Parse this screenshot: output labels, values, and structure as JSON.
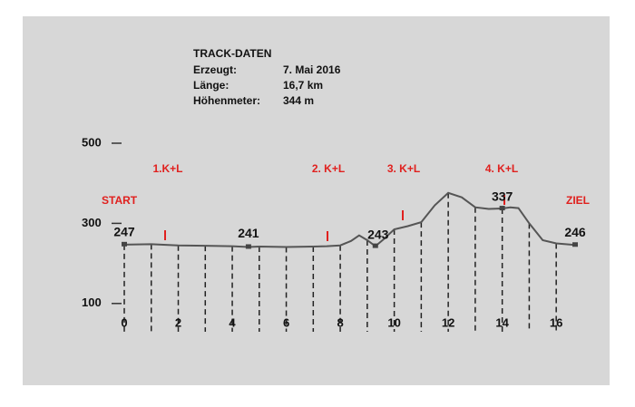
{
  "track_info": {
    "title": "TRACK-DATEN",
    "rows": [
      [
        "Erzeugt:",
        "7. Mai 2016"
      ],
      [
        "Länge:",
        "16,7 km"
      ],
      [
        "Höhenmeter:",
        "344 m"
      ]
    ]
  },
  "chart_data": {
    "type": "line",
    "color": "#555555",
    "x": [
      0,
      1,
      2,
      3,
      4,
      4.6,
      5,
      6,
      7,
      7.5,
      8,
      8.4,
      8.7,
      9,
      9.3,
      9.6,
      10,
      10.5,
      11,
      11.5,
      12,
      12.5,
      13,
      13.5,
      14,
      14.3,
      14.6,
      15,
      15.5,
      16,
      16.7
    ],
    "values": [
      247,
      248,
      245,
      244,
      243,
      241,
      242,
      241,
      242,
      243,
      245,
      256,
      270,
      258,
      243,
      260,
      285,
      293,
      303,
      345,
      376,
      365,
      340,
      336,
      337,
      340,
      338,
      300,
      258,
      250,
      246
    ],
    "xlim": [
      0,
      16.7
    ],
    "ylim": [
      0,
      500
    ],
    "xticks": [
      0,
      2,
      4,
      6,
      8,
      10,
      12,
      14,
      16
    ],
    "yticks": [
      100,
      300,
      500
    ],
    "start_label": "START",
    "end_label": "ZIEL",
    "annotations": [
      "1.K+L",
      "2. K+L",
      "3. K+L",
      "4. K+L"
    ],
    "point_labels": [
      {
        "x": 0,
        "value": 247
      },
      {
        "x": 4.6,
        "value": 241
      },
      {
        "x": 9.3,
        "value": 243
      },
      {
        "x": 14,
        "value": 337
      },
      {
        "x": 16.7,
        "value": 246
      }
    ]
  }
}
